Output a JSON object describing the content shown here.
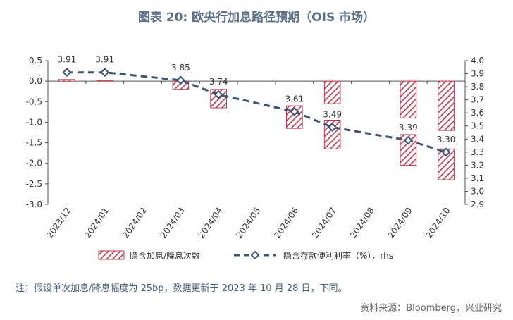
{
  "title": "图表 20: 欧央行加息路径预期（OIS 市场）",
  "note": "注：假设单次加息/降息幅度为 25bp，数据更新于 2023 年 10 月 28 日，下同。",
  "source": "资料来源：Bloomberg，兴业研究",
  "colors": {
    "bar_hatch": "#c0394b",
    "line": "#3d5473",
    "axis": "#555555",
    "title": "#5a6f88"
  },
  "chart_data": {
    "type": "bar+line",
    "categories": [
      "2023/12",
      "2024/01",
      "2024/02",
      "2024/03",
      "2024/04",
      "2024/05",
      "2024/06",
      "2024/07",
      "2024/08",
      "2024/09",
      "2024/10"
    ],
    "bars": [
      {
        "category": "2023/12",
        "start": 0.0,
        "end": 0.04
      },
      {
        "category": "2024/01",
        "start": 0.0,
        "end": 0.02
      },
      {
        "category": "2024/03",
        "start": 0.0,
        "end": -0.2
      },
      {
        "category": "2024/04",
        "start": -0.2,
        "end": -0.65
      },
      {
        "category": "2024/06",
        "start": -0.6,
        "end": -1.15
      },
      {
        "category": "2024/07",
        "start": -0.95,
        "end": -1.65
      },
      {
        "category": "2024/09",
        "start": -1.3,
        "end": -2.05
      },
      {
        "category": "2024/10",
        "start": -1.65,
        "end": -2.4
      },
      {
        "category": "2024/07",
        "start": 0.0,
        "end": -0.55
      },
      {
        "category": "2024/09",
        "start": 0.0,
        "end": -0.9
      },
      {
        "category": "2024/10",
        "start": 0.0,
        "end": -1.2
      }
    ],
    "series": [
      {
        "name": "隐含存款便利利率（%），rhs",
        "axis": "right",
        "values": [
          3.91,
          3.91,
          null,
          3.85,
          3.74,
          null,
          3.61,
          3.49,
          null,
          3.39,
          3.3
        ],
        "labels": [
          "3.91",
          "3.91",
          "",
          "3.85",
          "3.74",
          "",
          "3.61",
          "3.49",
          "",
          "3.39",
          "3.30"
        ]
      }
    ],
    "bar_series_name": "隐含加息/降息次数",
    "left_axis": {
      "min": -3.0,
      "max": 0.5,
      "step": 0.5,
      "ticks": [
        "0.5",
        "0.0",
        "-0.5",
        "-1.0",
        "-1.5",
        "-2.0",
        "-2.5",
        "-3.0"
      ]
    },
    "right_axis": {
      "min": 2.9,
      "max": 4.0,
      "step": 0.1,
      "ticks": [
        "4.0",
        "3.9",
        "3.8",
        "3.7",
        "3.6",
        "3.5",
        "3.4",
        "3.3",
        "3.2",
        "3.1",
        "3.0",
        "2.9"
      ]
    },
    "legend_position": "bottom"
  }
}
